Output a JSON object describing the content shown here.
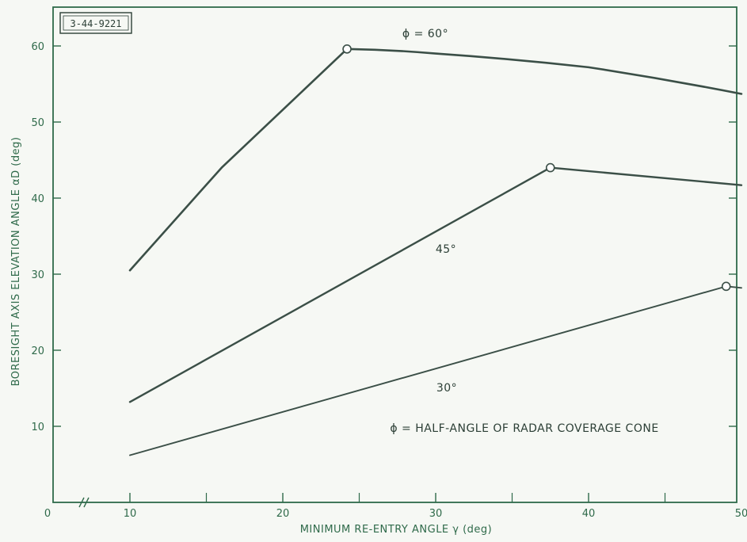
{
  "chart_data": {
    "type": "line",
    "id_label": "3-44-9221",
    "xlabel": "MINIMUM RE-ENTRY ANGLE γ (deg)",
    "ylabel": "BORESIGHT AXIS ELEVATION ANGLE αD (deg)",
    "xlim": [
      0,
      50
    ],
    "ylim": [
      0,
      65
    ],
    "x_axis_break": true,
    "x_ticks": [
      "0",
      "10",
      "20",
      "30",
      "40",
      "50"
    ],
    "y_ticks": [
      "10",
      "20",
      "30",
      "40",
      "50",
      "60"
    ],
    "grid": false,
    "series": [
      {
        "name": "ϕ = 60°",
        "points": [
          [
            10,
            30.5
          ],
          [
            16,
            44
          ],
          [
            24.2,
            59.6
          ],
          [
            30,
            59
          ],
          [
            40,
            57.2
          ],
          [
            50,
            53.7
          ]
        ],
        "marker_points": [
          [
            24.2,
            59.6
          ]
        ]
      },
      {
        "name": "45°",
        "points": [
          [
            10,
            13.2
          ],
          [
            37.5,
            44
          ],
          [
            50,
            41.7
          ]
        ],
        "marker_points": [
          [
            37.5,
            44
          ]
        ]
      },
      {
        "name": "30°",
        "points": [
          [
            10,
            6.2
          ],
          [
            49,
            28.4
          ],
          [
            50,
            28.2
          ]
        ],
        "marker_points": [
          [
            49,
            28.4
          ]
        ]
      }
    ],
    "annotations": [
      "ϕ = HALF-ANGLE OF RADAR COVERAGE CONE"
    ]
  },
  "colors": {
    "background": "#f6f8f4",
    "axis": "#2f6a4a",
    "curve": "#3b4f47"
  }
}
